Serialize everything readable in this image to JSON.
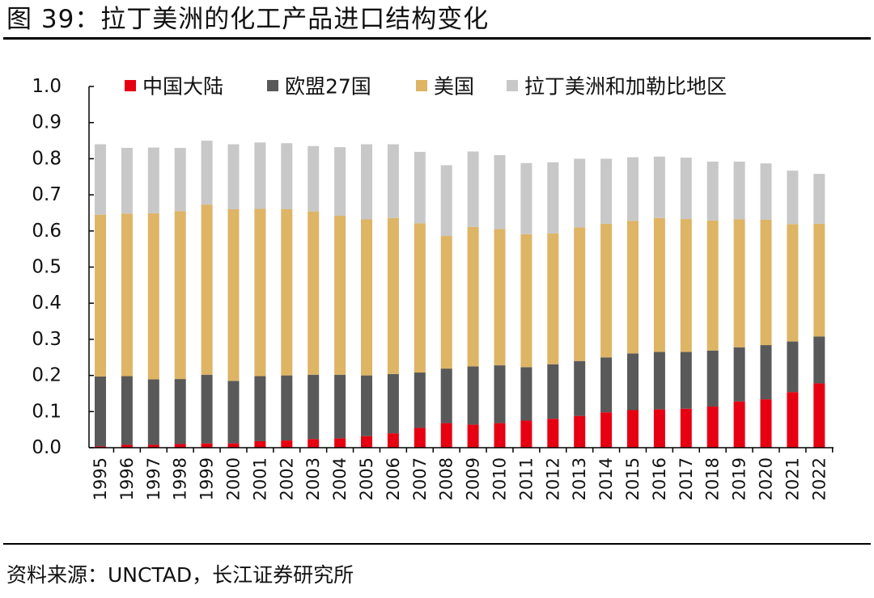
{
  "header": {
    "title": "图 39：拉丁美洲的化工产品进口结构变化"
  },
  "footer": {
    "source": "资料来源：UNCTAD，长江证券研究所"
  },
  "chart_data": {
    "type": "bar",
    "stacked": true,
    "title": "",
    "xlabel": "",
    "ylabel": "",
    "ylim": [
      0,
      1.0
    ],
    "yticks": [
      "0.0",
      "0.1",
      "0.2",
      "0.3",
      "0.4",
      "0.5",
      "0.6",
      "0.7",
      "0.8",
      "0.9",
      "1.0"
    ],
    "grid": false,
    "legend_position": "top",
    "categories": [
      "1995",
      "1996",
      "1997",
      "1998",
      "1999",
      "2000",
      "2001",
      "2002",
      "2003",
      "2004",
      "2005",
      "2006",
      "2007",
      "2008",
      "2009",
      "2010",
      "2011",
      "2012",
      "2013",
      "2014",
      "2015",
      "2016",
      "2017",
      "2018",
      "2019",
      "2020",
      "2021",
      "2022"
    ],
    "series": [
      {
        "name": "中国大陆",
        "color": "#e60012",
        "values": [
          0.004,
          0.008,
          0.008,
          0.01,
          0.012,
          0.012,
          0.018,
          0.02,
          0.024,
          0.026,
          0.032,
          0.04,
          0.055,
          0.068,
          0.064,
          0.068,
          0.075,
          0.08,
          0.088,
          0.098,
          0.104,
          0.106,
          0.108,
          0.114,
          0.128,
          0.134,
          0.154,
          0.178
        ]
      },
      {
        "name": "欧盟27国",
        "color": "#595959",
        "values": [
          0.193,
          0.19,
          0.181,
          0.18,
          0.19,
          0.173,
          0.18,
          0.18,
          0.178,
          0.176,
          0.168,
          0.164,
          0.153,
          0.151,
          0.161,
          0.16,
          0.148,
          0.151,
          0.152,
          0.152,
          0.157,
          0.159,
          0.157,
          0.155,
          0.15,
          0.15,
          0.14,
          0.13
        ]
      },
      {
        "name": "美国",
        "color": "#deb465",
        "values": [
          0.448,
          0.45,
          0.46,
          0.465,
          0.471,
          0.475,
          0.463,
          0.46,
          0.452,
          0.44,
          0.432,
          0.432,
          0.413,
          0.367,
          0.386,
          0.377,
          0.368,
          0.362,
          0.37,
          0.37,
          0.367,
          0.371,
          0.368,
          0.36,
          0.354,
          0.347,
          0.325,
          0.312
        ]
      },
      {
        "name": "拉丁美洲和加勒比地区",
        "color": "#c8c8c8",
        "values": [
          0.195,
          0.182,
          0.182,
          0.175,
          0.177,
          0.18,
          0.184,
          0.183,
          0.181,
          0.19,
          0.208,
          0.204,
          0.198,
          0.196,
          0.209,
          0.205,
          0.197,
          0.197,
          0.19,
          0.18,
          0.176,
          0.17,
          0.17,
          0.163,
          0.16,
          0.156,
          0.148,
          0.138
        ]
      }
    ]
  }
}
